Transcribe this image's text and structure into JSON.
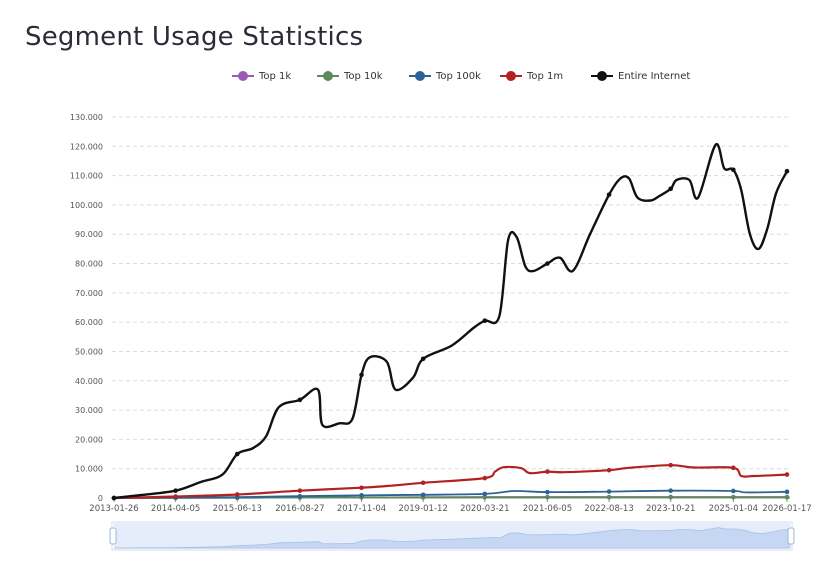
{
  "page": {
    "title": "Segment Usage Statistics"
  },
  "chart_data": {
    "type": "line",
    "title": "Segment Usage Statistics",
    "xlabel": "",
    "ylabel": "",
    "ylim": [
      0,
      130000
    ],
    "y_ticks": [
      0,
      10000,
      20000,
      30000,
      40000,
      50000,
      60000,
      70000,
      80000,
      90000,
      100000,
      110000,
      120000,
      130000
    ],
    "y_tick_labels": [
      "0",
      "10.000",
      "20.000",
      "30.000",
      "40.000",
      "50.000",
      "60.000",
      "70.000",
      "80.000",
      "90.000",
      "100.000",
      "110.000",
      "120.000",
      "130.000"
    ],
    "x_range": [
      "2013-01-26",
      "2026-01-17"
    ],
    "x_ticks": [
      "2013-01-26",
      "2014-04-05",
      "2015-06-13",
      "2016-08-27",
      "2017-11-04",
      "2019-01-12",
      "2020-03-21",
      "2021-06-05",
      "2022-08-13",
      "2023-10-21",
      "2025-01-04",
      "2026-01-17"
    ],
    "grid": true,
    "legend_position": "top-center",
    "series": [
      {
        "name": "Top 1k",
        "color": "#9b59b6",
        "points": [
          [
            "2013-01-26",
            0
          ],
          [
            "2014-04-05",
            50
          ],
          [
            "2015-06-13",
            100
          ],
          [
            "2016-08-27",
            150
          ],
          [
            "2017-11-04",
            200
          ],
          [
            "2019-01-12",
            230
          ],
          [
            "2020-03-21",
            260
          ],
          [
            "2021-06-05",
            280
          ],
          [
            "2022-08-13",
            300
          ],
          [
            "2023-10-21",
            310
          ],
          [
            "2025-01-04",
            300
          ],
          [
            "2026-01-17",
            300
          ]
        ]
      },
      {
        "name": "Top 10k",
        "color": "#5e8a5a",
        "points": [
          [
            "2013-01-26",
            0
          ],
          [
            "2014-04-05",
            50
          ],
          [
            "2015-06-13",
            100
          ],
          [
            "2016-08-27",
            150
          ],
          [
            "2017-11-04",
            200
          ],
          [
            "2019-01-12",
            230
          ],
          [
            "2020-03-21",
            260
          ],
          [
            "2021-06-05",
            280
          ],
          [
            "2022-08-13",
            300
          ],
          [
            "2023-10-21",
            310
          ],
          [
            "2025-01-04",
            300
          ],
          [
            "2026-01-17",
            300
          ]
        ]
      },
      {
        "name": "Top 100k",
        "color": "#2a6496",
        "points": [
          [
            "2013-01-26",
            0
          ],
          [
            "2014-04-05",
            150
          ],
          [
            "2015-06-13",
            300
          ],
          [
            "2016-08-27",
            600
          ],
          [
            "2017-11-04",
            900
          ],
          [
            "2019-01-12",
            1100
          ],
          [
            "2020-03-21",
            1400
          ],
          [
            "2020-10-15",
            2400
          ],
          [
            "2021-06-05",
            2000
          ],
          [
            "2022-08-13",
            2200
          ],
          [
            "2023-10-21",
            2500
          ],
          [
            "2025-01-04",
            2400
          ],
          [
            "2025-04-01",
            1900
          ],
          [
            "2026-01-17",
            2100
          ]
        ]
      },
      {
        "name": "Top 1m",
        "color": "#b22222",
        "points": [
          [
            "2013-01-26",
            0
          ],
          [
            "2014-04-05",
            500
          ],
          [
            "2015-06-13",
            1200
          ],
          [
            "2016-08-27",
            2500
          ],
          [
            "2017-11-04",
            3500
          ],
          [
            "2018-06-01",
            4200
          ],
          [
            "2019-01-12",
            5200
          ],
          [
            "2020-03-21",
            6800
          ],
          [
            "2020-06-01",
            9000
          ],
          [
            "2020-08-01",
            10500
          ],
          [
            "2020-12-01",
            10200
          ],
          [
            "2021-02-01",
            8500
          ],
          [
            "2021-06-05",
            9000
          ],
          [
            "2021-10-01",
            8800
          ],
          [
            "2022-08-13",
            9500
          ],
          [
            "2023-01-01",
            10300
          ],
          [
            "2023-10-21",
            11200
          ],
          [
            "2024-04-01",
            10400
          ],
          [
            "2025-01-04",
            10300
          ],
          [
            "2025-03-01",
            7500
          ],
          [
            "2025-06-01",
            7500
          ],
          [
            "2026-01-17",
            8000
          ]
        ]
      },
      {
        "name": "Entire Internet",
        "color": "#111111",
        "points": [
          [
            "2013-01-26",
            0
          ],
          [
            "2013-08-01",
            1000
          ],
          [
            "2014-04-05",
            2500
          ],
          [
            "2014-10-01",
            5500
          ],
          [
            "2015-03-01",
            8000
          ],
          [
            "2015-06-13",
            15000
          ],
          [
            "2015-10-01",
            17000
          ],
          [
            "2016-01-01",
            21000
          ],
          [
            "2016-04-01",
            31000
          ],
          [
            "2016-08-27",
            33500
          ],
          [
            "2017-01-01",
            37000
          ],
          [
            "2017-02-01",
            25000
          ],
          [
            "2017-06-01",
            25500
          ],
          [
            "2017-09-01",
            27000
          ],
          [
            "2017-11-04",
            42000
          ],
          [
            "2018-01-01",
            48000
          ],
          [
            "2018-05-01",
            46500
          ],
          [
            "2018-07-01",
            37000
          ],
          [
            "2018-11-01",
            41000
          ],
          [
            "2019-01-12",
            47500
          ],
          [
            "2019-08-01",
            52000
          ],
          [
            "2020-01-01",
            58000
          ],
          [
            "2020-03-21",
            60500
          ],
          [
            "2020-07-01",
            62000
          ],
          [
            "2020-09-01",
            88000
          ],
          [
            "2020-11-01",
            89000
          ],
          [
            "2021-01-01",
            79000
          ],
          [
            "2021-03-01",
            77500
          ],
          [
            "2021-06-05",
            80000
          ],
          [
            "2021-09-01",
            82000
          ],
          [
            "2021-12-01",
            77500
          ],
          [
            "2022-04-01",
            90000
          ],
          [
            "2022-08-13",
            103500
          ],
          [
            "2022-11-01",
            109000
          ],
          [
            "2023-01-01",
            109000
          ],
          [
            "2023-03-01",
            102500
          ],
          [
            "2023-06-01",
            101500
          ],
          [
            "2023-08-01",
            103000
          ],
          [
            "2023-10-21",
            105500
          ],
          [
            "2023-12-01",
            108500
          ],
          [
            "2024-03-01",
            108500
          ],
          [
            "2024-05-01",
            102500
          ],
          [
            "2024-09-01",
            120500
          ],
          [
            "2024-11-01",
            112500
          ],
          [
            "2025-01-04",
            112000
          ],
          [
            "2025-03-01",
            105000
          ],
          [
            "2025-05-01",
            90000
          ],
          [
            "2025-07-01",
            85000
          ],
          [
            "2025-09-01",
            92000
          ],
          [
            "2025-11-01",
            104000
          ],
          [
            "2026-01-17",
            111500
          ]
        ]
      }
    ]
  }
}
